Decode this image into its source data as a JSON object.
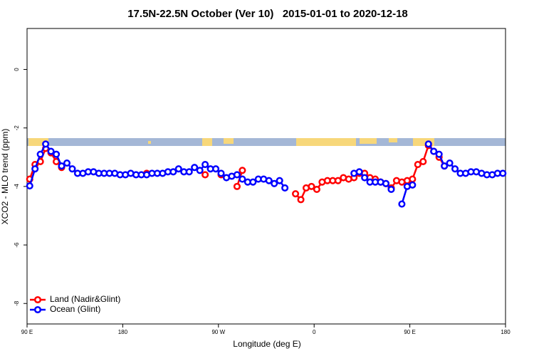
{
  "chart_data": {
    "type": "line",
    "title": "17.5N-22.5N October (Ver 10)   2015-01-01 to 2020-12-18",
    "x_label": "Longitude (deg E)",
    "y_label": "XCO2 - MLO trend (ppm)",
    "x": [
      92.5,
      97.5,
      102.5,
      107.5,
      112.5,
      117.5,
      122.5,
      127.5,
      132.5,
      137.5,
      142.5,
      147.5,
      152.5,
      157.5,
      162.5,
      167.5,
      172.5,
      177.5,
      182.5,
      187.5,
      192.5,
      197.5,
      202.5,
      207.5,
      212.5,
      217.5,
      222.5,
      227.5,
      232.5,
      237.5,
      242.5,
      247.5,
      252.5,
      257.5,
      262.5,
      267.5,
      272.5,
      277.5,
      282.5,
      287.5,
      292.5,
      297.5,
      302.5,
      307.5,
      312.5,
      317.5,
      322.5,
      327.5,
      332.5,
      337.5,
      342.5,
      347.5,
      352.5,
      357.5,
      362.5,
      367.5,
      372.5,
      377.5,
      382.5,
      387.5,
      392.5,
      397.5,
      402.5,
      407.5,
      412.5,
      417.5,
      422.5,
      427.5,
      432.5,
      437.5,
      442.5,
      447.5,
      452.5,
      457.5,
      462.5,
      467.5,
      472.5,
      477.5,
      482.5,
      487.5,
      492.5,
      497.5,
      502.5,
      507.5,
      512.5,
      517.5,
      522.5,
      527.5,
      532.5,
      537.5
    ],
    "series": [
      {
        "name": "Land (Nadir&Glint)",
        "color": "#ff0000",
        "values": [
          -3.75,
          -3.25,
          -3.15,
          -2.7,
          -2.85,
          -3.15,
          -3.35,
          null,
          null,
          null,
          null,
          null,
          null,
          null,
          null,
          null,
          null,
          null,
          null,
          null,
          null,
          null,
          -3.55,
          null,
          null,
          null,
          null,
          null,
          null,
          null,
          null,
          null,
          null,
          -3.6,
          null,
          null,
          -3.6,
          null,
          null,
          -4.0,
          -3.45,
          null,
          null,
          null,
          null,
          null,
          null,
          null,
          null,
          null,
          -4.25,
          -4.45,
          -4.05,
          -4.0,
          -4.1,
          -3.85,
          -3.8,
          -3.8,
          -3.8,
          -3.7,
          -3.75,
          -3.7,
          -3.55,
          -3.55,
          -3.7,
          -3.75,
          -3.85,
          -3.9,
          -4.05,
          -3.8,
          -3.85,
          -3.8,
          -3.75,
          -3.25,
          -3.15,
          -2.6,
          -2.8,
          -3.0,
          -3.3,
          null,
          null,
          null,
          null,
          null,
          null,
          null,
          null,
          null,
          null,
          null
        ]
      },
      {
        "name": "Ocean (Glint)",
        "color": "#0000ff",
        "values": [
          -3.98,
          -3.4,
          -2.9,
          -2.55,
          -2.8,
          -2.9,
          -3.3,
          -3.2,
          -3.4,
          -3.55,
          -3.55,
          -3.5,
          -3.5,
          -3.55,
          -3.55,
          -3.55,
          -3.55,
          -3.6,
          -3.6,
          -3.55,
          -3.6,
          -3.6,
          -3.6,
          -3.55,
          -3.55,
          -3.55,
          -3.5,
          -3.5,
          -3.4,
          -3.5,
          -3.5,
          -3.35,
          -3.45,
          -3.25,
          -3.4,
          -3.4,
          -3.55,
          -3.7,
          -3.65,
          -3.6,
          -3.75,
          -3.85,
          -3.85,
          -3.75,
          -3.75,
          -3.8,
          -3.9,
          -3.8,
          -4.05,
          null,
          null,
          null,
          null,
          null,
          null,
          null,
          null,
          null,
          null,
          null,
          null,
          -3.55,
          -3.5,
          -3.7,
          -3.85,
          -3.85,
          -3.85,
          -3.9,
          -4.1,
          null,
          -4.6,
          -4.0,
          -3.95,
          null,
          null,
          -2.55,
          -2.8,
          -2.9,
          -3.3,
          -3.2,
          -3.4,
          -3.55,
          -3.55,
          -3.5,
          -3.5,
          -3.55,
          -3.6,
          -3.6,
          -3.55,
          -3.55
        ]
      }
    ],
    "xlim": [
      90,
      540
    ],
    "xticks": [
      {
        "value": 90,
        "label": "90 E"
      },
      180,
      {
        "value": 270,
        "label": "90 W"
      },
      {
        "value": 360,
        "label": "0"
      },
      {
        "value": 450,
        "label": "90 E"
      },
      {
        "value": 540,
        "label": "180"
      }
    ],
    "ylim": [
      -8.7,
      1.4
    ],
    "yticks": [
      0,
      -2,
      -4,
      -6,
      -8
    ],
    "grid": false,
    "legend": "bottomleft"
  }
}
